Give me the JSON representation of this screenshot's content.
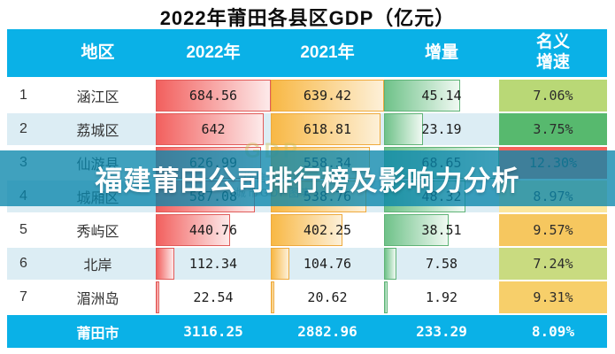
{
  "title": "2022年莆田各县区GDP（亿元）",
  "banner": {
    "text": "福建莆田公司排行榜及影响力分析",
    "bg_color": "#0a86ac"
  },
  "watermark": {
    "gdp": "GDP",
    "line1": "微信小程序",
    "line2": "城市GDP图表"
  },
  "colors": {
    "header_bg": "#0ab1e7",
    "row_alt_bg": "#dcedf4",
    "bar_2022": "#f2605e",
    "bar_2021": "#f8b845",
    "bar_increase": "#6fc289"
  },
  "table": {
    "headers": {
      "region": "地区",
      "y2022": "2022年",
      "y2021": "2021年",
      "increase": "增量",
      "growth_line1": "名义",
      "growth_line2": "增速"
    },
    "rows": [
      {
        "rank": "1",
        "region": "涵江区",
        "v2022": "684.56",
        "v2021": "639.42",
        "inc": "45.14",
        "growth": "7.06%",
        "bar2022_pct": 100,
        "bar2021_pct": 100,
        "inc_pct": 65.8,
        "growth_color": "#b9d876"
      },
      {
        "rank": "2",
        "region": "荔城区",
        "v2022": "642",
        "v2021": "618.81",
        "inc": "23.19",
        "growth": "3.75%",
        "bar2022_pct": 93.8,
        "bar2021_pct": 96.8,
        "inc_pct": 33.8,
        "growth_color": "#57b96e"
      },
      {
        "rank": "3",
        "region": "仙游县",
        "v2022": "626.99",
        "v2021": "558.34",
        "inc": "68.65",
        "growth": "12.30%",
        "bar2022_pct": 91.6,
        "bar2021_pct": 87.3,
        "inc_pct": 100,
        "growth_color": "#f4635b"
      },
      {
        "rank": "4",
        "region": "城厢区",
        "v2022": "587.08",
        "v2021": "538.76",
        "inc": "48.32",
        "growth": "8.97%",
        "bar2022_pct": 85.8,
        "bar2021_pct": 84.3,
        "inc_pct": 70.4,
        "growth_color": "#fbe79e"
      },
      {
        "rank": "5",
        "region": "秀屿区",
        "v2022": "440.76",
        "v2021": "402.25",
        "inc": "38.51",
        "growth": "9.57%",
        "bar2022_pct": 64.4,
        "bar2021_pct": 62.9,
        "inc_pct": 56.1,
        "growth_color": "#f6c75f"
      },
      {
        "rank": "6",
        "region": "北岸",
        "v2022": "112.34",
        "v2021": "104.76",
        "inc": "7.58",
        "growth": "7.24%",
        "bar2022_pct": 16.4,
        "bar2021_pct": 16.4,
        "inc_pct": 11.0,
        "growth_color": "#c9db80"
      },
      {
        "rank": "7",
        "region": "湄洲岛",
        "v2022": "22.54",
        "v2021": "20.62",
        "inc": "1.92",
        "growth": "9.31%",
        "bar2022_pct": 3.3,
        "bar2021_pct": 3.2,
        "inc_pct": 2.8,
        "growth_color": "#f7cf6a"
      }
    ],
    "footer": {
      "region": "莆田市",
      "v2022": "3116.25",
      "v2021": "2882.96",
      "inc": "233.29",
      "growth": "8.09%"
    }
  },
  "chart_data": {
    "type": "table",
    "title": "2022年莆田各县区GDP（亿元）",
    "categories": [
      "涵江区",
      "荔城区",
      "仙游县",
      "城厢区",
      "秀屿区",
      "北岸",
      "湄洲岛"
    ],
    "series": [
      {
        "name": "2022年",
        "values": [
          684.56,
          642,
          626.99,
          587.08,
          440.76,
          112.34,
          22.54
        ]
      },
      {
        "name": "2021年",
        "values": [
          639.42,
          618.81,
          558.34,
          538.76,
          402.25,
          104.76,
          20.62
        ]
      },
      {
        "name": "增量",
        "values": [
          45.14,
          23.19,
          68.65,
          48.32,
          38.51,
          7.58,
          1.92
        ]
      },
      {
        "name": "名义增速",
        "values": [
          "7.06%",
          "3.75%",
          "12.30%",
          "8.97%",
          "9.57%",
          "7.24%",
          "9.31%"
        ]
      }
    ],
    "totals": {
      "name": "莆田市",
      "v2022": 3116.25,
      "v2021": 2882.96,
      "increase": 233.29,
      "growth": "8.09%"
    },
    "layout_hints": {
      "in_cell_bars": true,
      "bar_max_2022": 684.56,
      "bar_max_2021": 639.42,
      "bar_max_increase": 68.65
    }
  }
}
